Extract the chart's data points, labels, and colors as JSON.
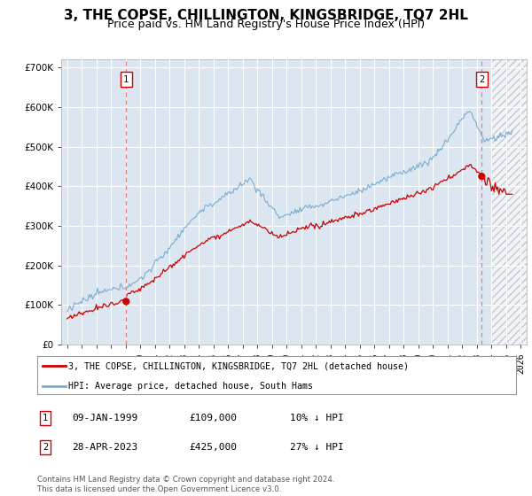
{
  "title": "3, THE COPSE, CHILLINGTON, KINGSBRIDGE, TQ7 2HL",
  "subtitle": "Price paid vs. HM Land Registry's House Price Index (HPI)",
  "ylim": [
    0,
    720000
  ],
  "yticks": [
    0,
    100000,
    200000,
    300000,
    400000,
    500000,
    600000,
    700000
  ],
  "ytick_labels": [
    "£0",
    "£100K",
    "£200K",
    "£300K",
    "£400K",
    "£500K",
    "£600K",
    "£700K"
  ],
  "xlim_left": 1994.6,
  "xlim_right": 2026.4,
  "sale1_date": 1999.04,
  "sale1_price": 109000,
  "sale1_label": "1",
  "sale2_date": 2023.33,
  "sale2_price": 425000,
  "sale2_label": "2",
  "property_color": "#cc0000",
  "hpi_color": "#7aadcf",
  "dot_color": "#cc0000",
  "vline_color": "#e08080",
  "legend_property": "3, THE COPSE, CHILLINGTON, KINGSBRIDGE, TQ7 2HL (detached house)",
  "legend_hpi": "HPI: Average price, detached house, South Hams",
  "annotation1": "09-JAN-1999",
  "annotation1_price": "£109,000",
  "annotation1_pct": "10% ↓ HPI",
  "annotation2": "28-APR-2023",
  "annotation2_price": "£425,000",
  "annotation2_pct": "27% ↓ HPI",
  "footnote": "Contains HM Land Registry data © Crown copyright and database right 2024.\nThis data is licensed under the Open Government Licence v3.0.",
  "bg_color": "#ffffff",
  "chart_bg": "#dce6f1",
  "grid_color": "#ffffff",
  "title_fontsize": 11,
  "subtitle_fontsize": 9,
  "tick_fontsize": 7.5
}
